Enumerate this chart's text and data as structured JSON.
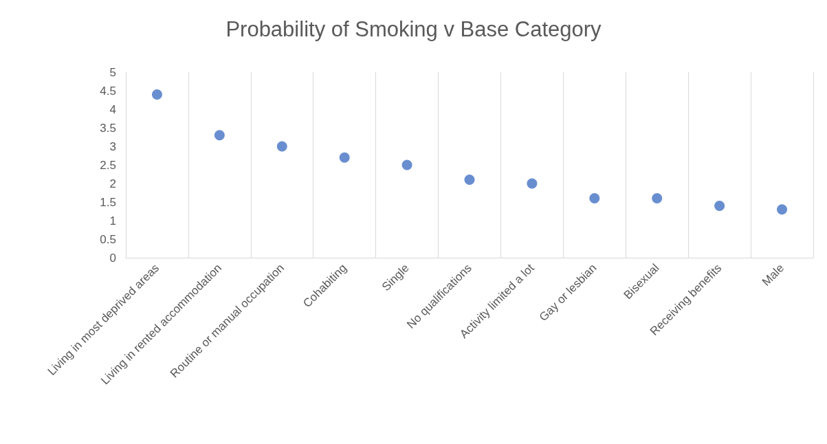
{
  "chart_data": {
    "type": "scatter",
    "title": "Probability of Smoking v Base Category",
    "categories": [
      "Living in most deprived areas",
      "Living in rented accommodation",
      "Routine or manual occupation",
      "Cohabiting",
      "Single",
      "No qualifications",
      "Activity limited a lot",
      "Gay or lesbian",
      "Bisexual",
      "Receiving benefits",
      "Male"
    ],
    "values": [
      4.4,
      3.3,
      3.0,
      2.7,
      2.5,
      2.1,
      2.0,
      1.6,
      1.6,
      1.4,
      1.3
    ],
    "color": "#4472c4",
    "marker": "circle",
    "grid": "x",
    "ylim": [
      0,
      5
    ],
    "yticks": [
      0,
      0.5,
      1,
      1.5,
      2,
      2.5,
      3,
      3.5,
      4,
      4.5,
      5
    ]
  }
}
